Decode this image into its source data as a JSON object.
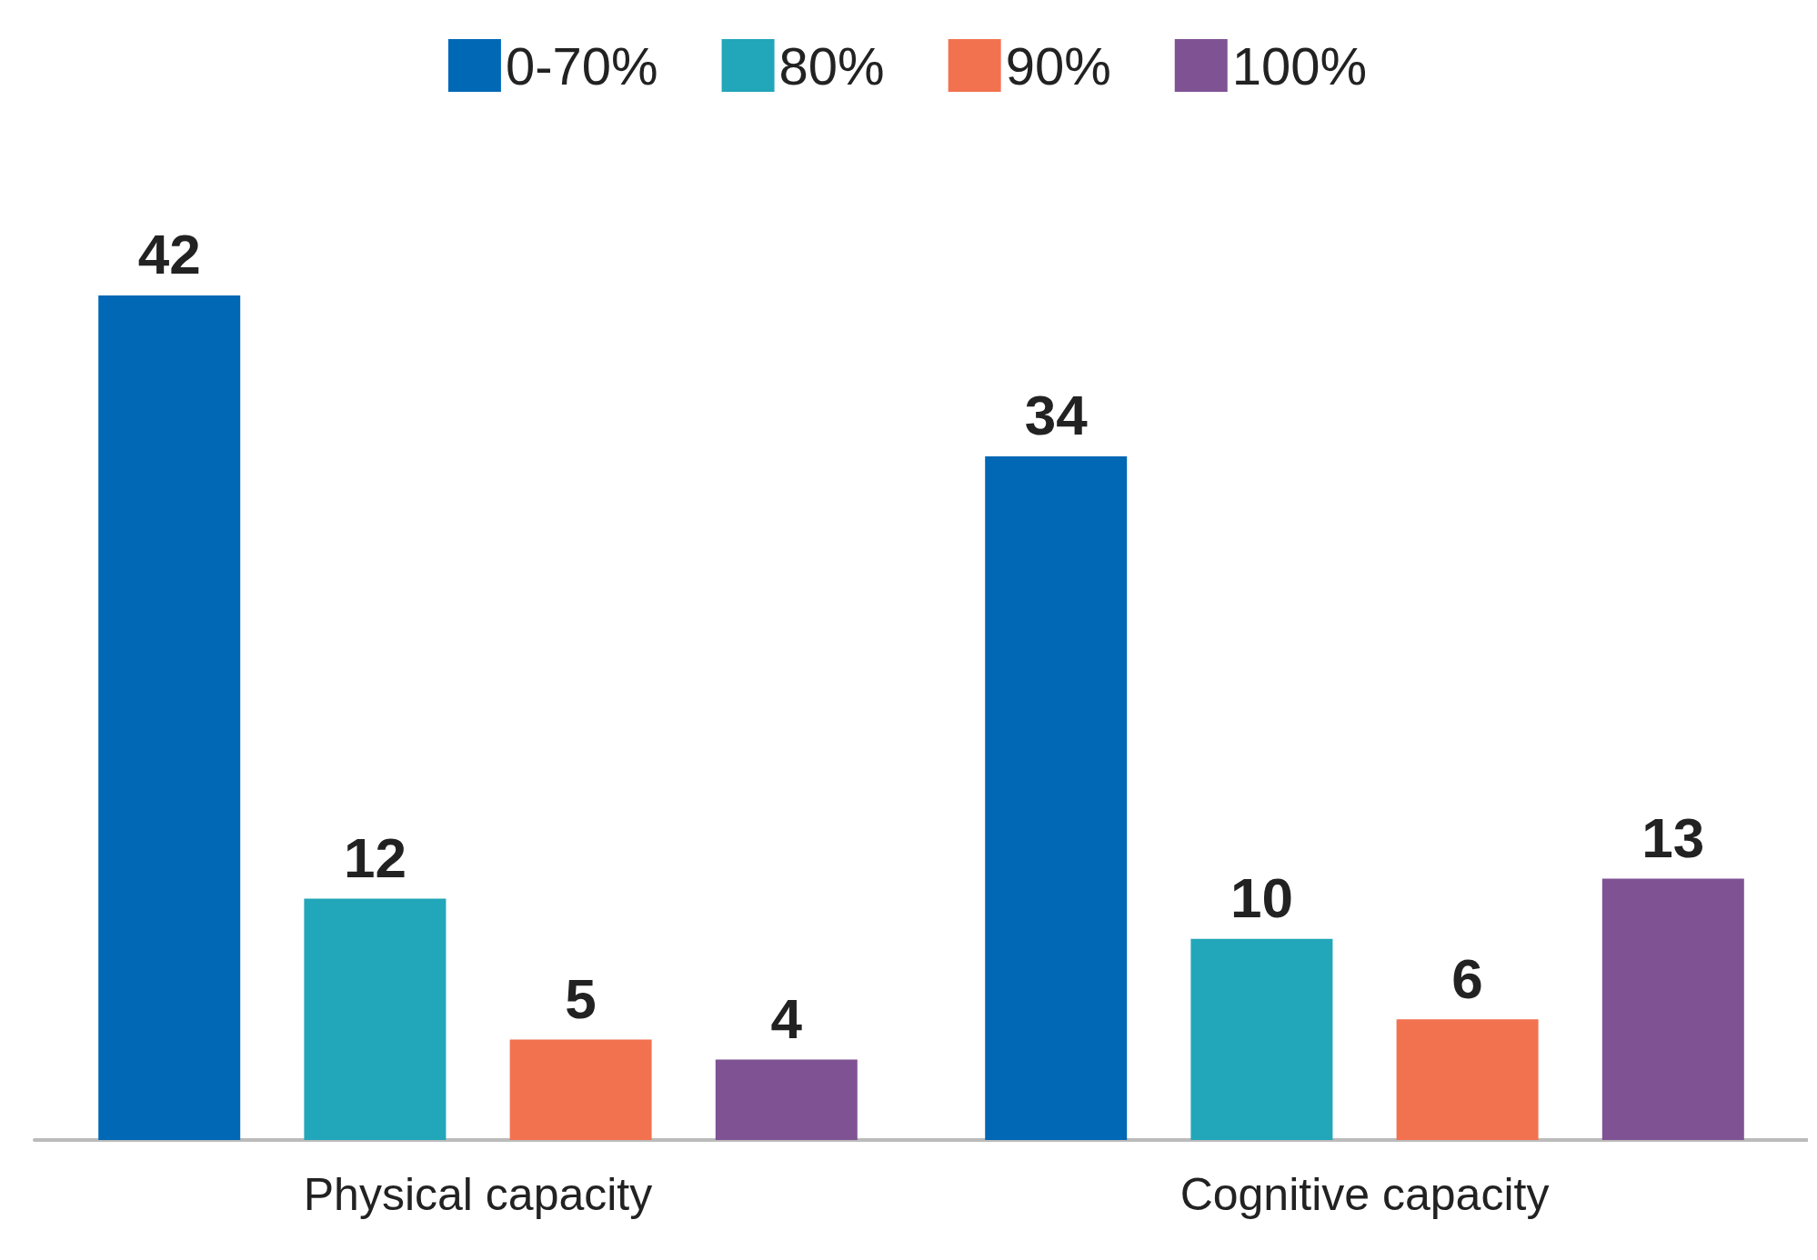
{
  "chart_data": {
    "type": "bar",
    "categories": [
      "Physical capacity",
      "Cognitive capacity"
    ],
    "series": [
      {
        "name": "0-70%",
        "color": "#0068b5",
        "values": [
          42,
          34
        ]
      },
      {
        "name": "80%",
        "color": "#22a6b9",
        "values": [
          12,
          10
        ]
      },
      {
        "name": "90%",
        "color": "#f2724f",
        "values": [
          5,
          6
        ]
      },
      {
        "name": "100%",
        "color": "#7f5294",
        "values": [
          4,
          13
        ]
      }
    ],
    "data_labels": true,
    "legend": "top",
    "grid": false,
    "tick_labels": "x"
  }
}
